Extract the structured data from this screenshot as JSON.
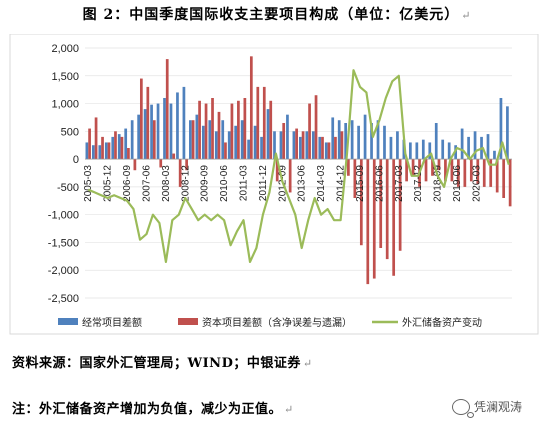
{
  "title": "图 2：中国季度国际收支主要项目构成（单位：亿美元）",
  "title_mark": "↵",
  "source": "资料来源：国家外汇管理局；WIND；中银证券",
  "source_mark": "↵",
  "footnote": "注：外汇储备资产增加为负值，减少为正值。",
  "footnote_mark": "↵",
  "watermark": "凭澜观涛",
  "watermark_icon": "wechat-icon",
  "chart_data": {
    "type": "bar",
    "ylim": [
      -2500,
      2000
    ],
    "yticks": [
      2000,
      1500,
      1000,
      500,
      0,
      -500,
      -1000,
      -1500,
      -2000,
      -2500
    ],
    "ytick_labels": [
      "2,000",
      "1,500",
      "1,000",
      "500",
      "0",
      "-500",
      "-1,000",
      "-1,500",
      "-2,000",
      "-2,500"
    ],
    "xtick_labels": [
      "2005-03",
      "2005-12",
      "2006-09",
      "2007-06",
      "2008-03",
      "2008-12",
      "2009-09",
      "2010-06",
      "2011-03",
      "2011-12",
      "2012-09",
      "2013-06",
      "2014-03",
      "2014-12",
      "2015-09",
      "2016-06",
      "2017-03",
      "2017-12",
      "2018-09",
      "2019-06",
      "2020-03"
    ],
    "legend_position": "bottom",
    "colors": {
      "current": "#4f81bd",
      "capital": "#c0504d",
      "reserve": "#9bbb59"
    },
    "series": [
      {
        "name": "经常项目差额",
        "type": "bar",
        "values": [
          300,
          250,
          250,
          300,
          400,
          450,
          550,
          700,
          800,
          900,
          980,
          1000,
          1100,
          1000,
          1200,
          1300,
          700,
          800,
          600,
          700,
          500,
          700,
          500,
          600,
          700,
          350,
          600,
          400,
          900,
          500,
          500,
          800,
          500,
          400,
          500,
          500,
          400,
          300,
          750,
          700,
          650,
          700,
          600,
          800,
          650,
          700,
          600,
          400,
          500,
          350,
          300,
          300,
          350,
          300,
          650,
          350,
          300,
          250,
          550,
          400,
          500,
          400,
          450,
          150,
          1100,
          950
        ]
      },
      {
        "name": "资本项目差额（含净误差与遗漏）",
        "type": "bar",
        "values": [
          550,
          750,
          400,
          300,
          500,
          400,
          200,
          -200,
          1450,
          1300,
          700,
          -150,
          1800,
          100,
          -500,
          -200,
          700,
          1050,
          1000,
          1100,
          850,
          300,
          1000,
          1050,
          1100,
          1850,
          1300,
          1300,
          1050,
          -400,
          650,
          -600,
          550,
          500,
          1000,
          1150,
          400,
          300,
          400,
          500,
          -300,
          -700,
          -1550,
          -2250,
          -2150,
          -1600,
          -1800,
          -2100,
          -1650,
          -400,
          -300,
          -500,
          -400,
          -300,
          -200,
          -400,
          -400,
          -500,
          -500,
          -400,
          -450,
          -500,
          -500,
          -600,
          -700,
          -850
        ]
      },
      {
        "name": "外汇储备资产变动",
        "type": "line",
        "values": [
          -550,
          -600,
          -650,
          -700,
          -650,
          -700,
          -750,
          -900,
          -1450,
          -1350,
          -1000,
          -1150,
          -1850,
          -1100,
          -1000,
          -700,
          -900,
          -1100,
          -1000,
          -1100,
          -1000,
          -1100,
          -1550,
          -1300,
          -1100,
          -1850,
          -1600,
          -1000,
          -600,
          100,
          -400,
          -700,
          -1000,
          -1600,
          -1100,
          -700,
          -1000,
          -900,
          -1100,
          -1100,
          100,
          1600,
          1300,
          1200,
          400,
          700,
          1100,
          1400,
          1500,
          100,
          -300,
          -300,
          0,
          100,
          -300,
          -500,
          0,
          200,
          150,
          0,
          150,
          200,
          -100,
          -100,
          300,
          -100
        ]
      }
    ]
  }
}
